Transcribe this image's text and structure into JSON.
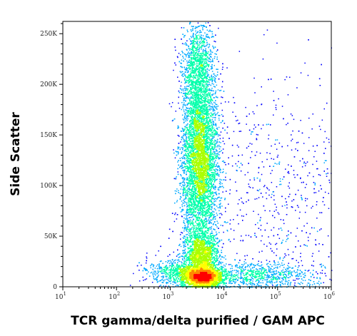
{
  "chart_data": {
    "type": "scatter",
    "subtype": "flow-cytometry-density-plot",
    "xlabel": "TCR gamma/delta purified / GAM APC",
    "ylabel": "Side Scatter",
    "x_scale": "log",
    "xlim": [
      10,
      1000000
    ],
    "ylim": [
      0,
      262144
    ],
    "x_ticks": [
      {
        "value": 10,
        "label_base": "10",
        "label_exp": "1"
      },
      {
        "value": 100,
        "label_base": "10",
        "label_exp": "2"
      },
      {
        "value": 1000,
        "label_base": "10",
        "label_exp": "3"
      },
      {
        "value": 10000,
        "label_base": "10",
        "label_exp": "4"
      },
      {
        "value": 100000,
        "label_base": "10",
        "label_exp": "5"
      },
      {
        "value": 1000000,
        "label_base": "10",
        "label_exp": "6"
      }
    ],
    "y_ticks": [
      {
        "value": 0,
        "label": "0"
      },
      {
        "value": 50000,
        "label": "50K"
      },
      {
        "value": 100000,
        "label": "100K"
      },
      {
        "value": 150000,
        "label": "150K"
      },
      {
        "value": 200000,
        "label": "200K"
      },
      {
        "value": 250000,
        "label": "250K"
      }
    ],
    "grid": false,
    "legend": "none",
    "color_scale": [
      "#0000ff",
      "#00aaff",
      "#00ffaa",
      "#aaff00",
      "#ffff00",
      "#ff8800",
      "#ff0000"
    ],
    "populations": [
      {
        "x_center": 4000,
        "y_center": 10000,
        "x_spread_decades": 0.18,
        "y_spread": 5000,
        "weight": 0.2
      },
      {
        "x_center": 3800,
        "y_center": 32000,
        "x_spread_decades": 0.16,
        "y_spread": 11000,
        "weight": 0.12
      },
      {
        "x_center": 3500,
        "y_center": 125000,
        "x_spread_decades": 0.17,
        "y_spread": 45000,
        "weight": 0.4
      },
      {
        "x_center": 3200,
        "y_center": 215000,
        "x_spread_decades": 0.14,
        "y_spread": 25000,
        "weight": 0.1
      },
      {
        "x_center": 30000,
        "y_center": 12000,
        "x_spread_decades": 0.55,
        "y_spread": 6000,
        "weight": 0.06
      },
      {
        "x_center": 1500,
        "y_center": 14000,
        "x_spread_decades": 0.3,
        "y_spread": 7000,
        "weight": 0.06
      },
      {
        "x_center": 40000,
        "y_center": 90000,
        "x_spread_decades": 0.6,
        "y_spread": 60000,
        "weight": 0.03
      },
      {
        "x_center": 300000,
        "y_center": 60000,
        "x_spread_decades": 0.5,
        "y_spread": 80000,
        "weight": 0.03
      }
    ]
  }
}
